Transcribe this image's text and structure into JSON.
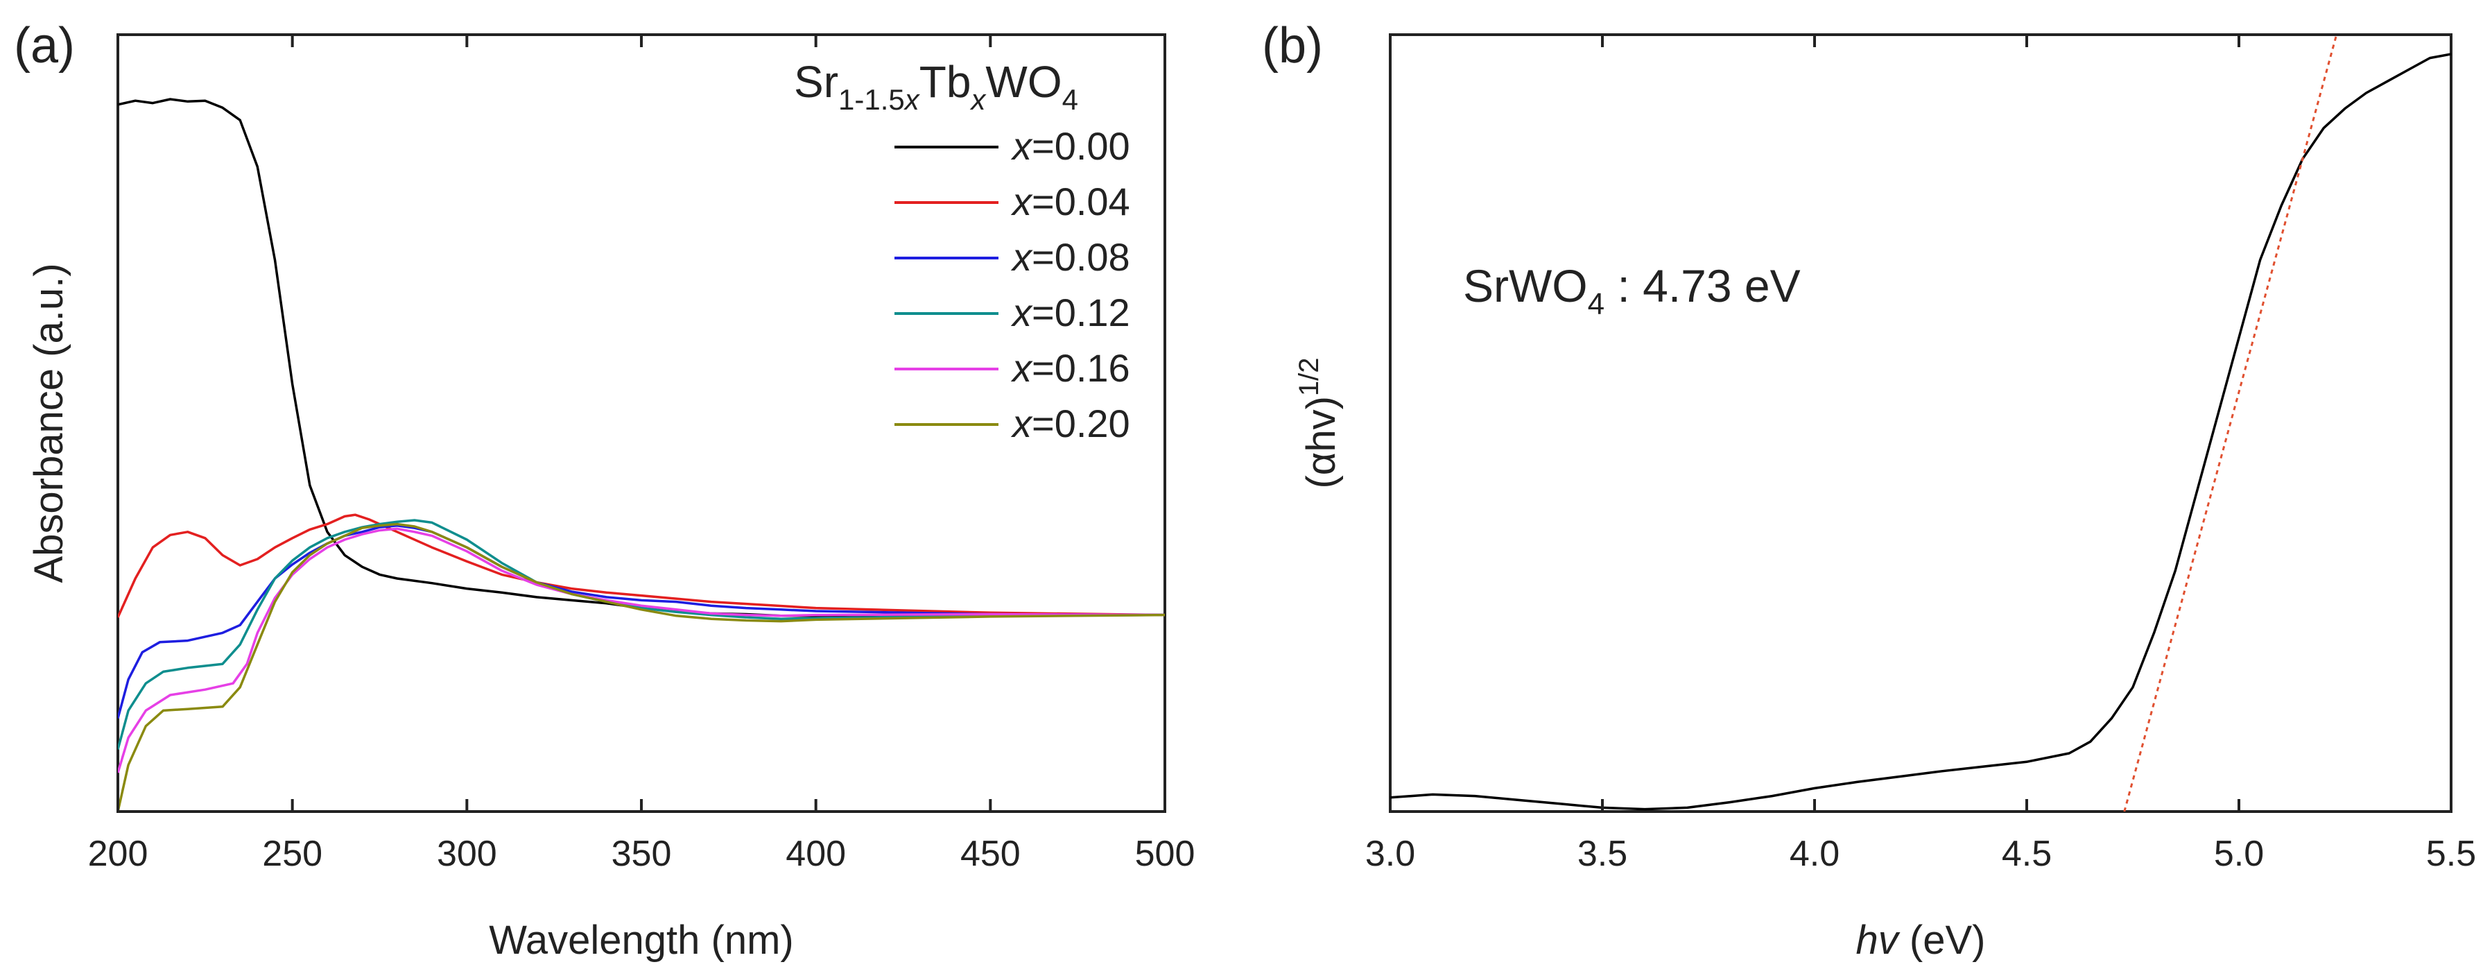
{
  "chart_data": [
    {
      "panel_label": "(a)",
      "type": "line",
      "xlabel": "Wavelength (nm)",
      "ylabel": "Absorbance (a.u.)",
      "xlim": [
        200,
        500
      ],
      "ylim": [
        0,
        1
      ],
      "x_ticks": [
        "200",
        "250",
        "300",
        "350",
        "400",
        "450",
        "500"
      ],
      "y_ticks": [],
      "grid": false,
      "legend_position": "top-right",
      "legend_title": {
        "base": "Sr",
        "sub1": "1-1.5",
        "sub1_var": "x",
        "mid": "Tb",
        "sub2": "x",
        "tail": "WO",
        "sub3": "4"
      },
      "series": [
        {
          "name": "x=0.00",
          "label_var": "x",
          "label_val": "=0.00",
          "color": "#000000",
          "points": [
            [
              200,
              0.91
            ],
            [
              205,
              0.915
            ],
            [
              210,
              0.912
            ],
            [
              215,
              0.917
            ],
            [
              220,
              0.914
            ],
            [
              225,
              0.915
            ],
            [
              230,
              0.906
            ],
            [
              235,
              0.89
            ],
            [
              240,
              0.83
            ],
            [
              245,
              0.71
            ],
            [
              250,
              0.55
            ],
            [
              255,
              0.42
            ],
            [
              260,
              0.36
            ],
            [
              265,
              0.33
            ],
            [
              270,
              0.315
            ],
            [
              275,
              0.305
            ],
            [
              280,
              0.3
            ],
            [
              290,
              0.294
            ],
            [
              300,
              0.287
            ],
            [
              310,
              0.282
            ],
            [
              320,
              0.276
            ],
            [
              330,
              0.272
            ],
            [
              340,
              0.268
            ],
            [
              350,
              0.262
            ],
            [
              360,
              0.258
            ],
            [
              370,
              0.255
            ],
            [
              380,
              0.254
            ],
            [
              390,
              0.252
            ],
            [
              400,
              0.252
            ],
            [
              420,
              0.253
            ],
            [
              450,
              0.253
            ],
            [
              500,
              0.253
            ]
          ]
        },
        {
          "name": "x=0.04",
          "label_var": "x",
          "label_val": "=0.04",
          "color": "#e32020",
          "points": [
            [
              200,
              0.25
            ],
            [
              205,
              0.3
            ],
            [
              210,
              0.34
            ],
            [
              215,
              0.356
            ],
            [
              220,
              0.36
            ],
            [
              225,
              0.352
            ],
            [
              230,
              0.33
            ],
            [
              235,
              0.317
            ],
            [
              240,
              0.325
            ],
            [
              245,
              0.34
            ],
            [
              250,
              0.352
            ],
            [
              255,
              0.363
            ],
            [
              260,
              0.37
            ],
            [
              265,
              0.38
            ],
            [
              268,
              0.382
            ],
            [
              272,
              0.376
            ],
            [
              280,
              0.36
            ],
            [
              290,
              0.34
            ],
            [
              300,
              0.322
            ],
            [
              310,
              0.305
            ],
            [
              320,
              0.295
            ],
            [
              330,
              0.287
            ],
            [
              340,
              0.282
            ],
            [
              350,
              0.278
            ],
            [
              370,
              0.27
            ],
            [
              400,
              0.262
            ],
            [
              450,
              0.256
            ],
            [
              500,
              0.253
            ]
          ]
        },
        {
          "name": "x=0.08",
          "label_var": "x",
          "label_val": "=0.08",
          "color": "#1e1ee0",
          "points": [
            [
              200,
              0.12
            ],
            [
              203,
              0.17
            ],
            [
              207,
              0.205
            ],
            [
              212,
              0.218
            ],
            [
              220,
              0.22
            ],
            [
              230,
              0.23
            ],
            [
              235,
              0.24
            ],
            [
              240,
              0.27
            ],
            [
              245,
              0.3
            ],
            [
              250,
              0.318
            ],
            [
              255,
              0.333
            ],
            [
              260,
              0.345
            ],
            [
              265,
              0.355
            ],
            [
              270,
              0.36
            ],
            [
              275,
              0.366
            ],
            [
              280,
              0.368
            ],
            [
              285,
              0.365
            ],
            [
              290,
              0.36
            ],
            [
              300,
              0.34
            ],
            [
              310,
              0.315
            ],
            [
              320,
              0.295
            ],
            [
              330,
              0.283
            ],
            [
              340,
              0.276
            ],
            [
              350,
              0.272
            ],
            [
              360,
              0.27
            ],
            [
              370,
              0.265
            ],
            [
              380,
              0.262
            ],
            [
              390,
              0.26
            ],
            [
              400,
              0.258
            ],
            [
              450,
              0.254
            ],
            [
              500,
              0.253
            ]
          ]
        },
        {
          "name": "x=0.12",
          "label_var": "x",
          "label_val": "=0.12",
          "color": "#0f8e8e",
          "points": [
            [
              200,
              0.08
            ],
            [
              203,
              0.13
            ],
            [
              208,
              0.165
            ],
            [
              213,
              0.18
            ],
            [
              220,
              0.185
            ],
            [
              230,
              0.19
            ],
            [
              235,
              0.215
            ],
            [
              240,
              0.26
            ],
            [
              245,
              0.3
            ],
            [
              250,
              0.323
            ],
            [
              255,
              0.34
            ],
            [
              260,
              0.352
            ],
            [
              265,
              0.36
            ],
            [
              270,
              0.366
            ],
            [
              275,
              0.37
            ],
            [
              280,
              0.373
            ],
            [
              285,
              0.375
            ],
            [
              290,
              0.372
            ],
            [
              300,
              0.35
            ],
            [
              310,
              0.32
            ],
            [
              320,
              0.295
            ],
            [
              330,
              0.28
            ],
            [
              340,
              0.27
            ],
            [
              350,
              0.262
            ],
            [
              360,
              0.257
            ],
            [
              370,
              0.253
            ],
            [
              380,
              0.25
            ],
            [
              390,
              0.248
            ],
            [
              400,
              0.249
            ],
            [
              450,
              0.252
            ],
            [
              500,
              0.253
            ]
          ]
        },
        {
          "name": "x=0.16",
          "label_var": "x",
          "label_val": "=0.16",
          "color": "#e640e6",
          "points": [
            [
              200,
              0.05
            ],
            [
              203,
              0.095
            ],
            [
              208,
              0.13
            ],
            [
              215,
              0.15
            ],
            [
              225,
              0.157
            ],
            [
              233,
              0.165
            ],
            [
              237,
              0.19
            ],
            [
              240,
              0.23
            ],
            [
              245,
              0.275
            ],
            [
              250,
              0.305
            ],
            [
              255,
              0.325
            ],
            [
              260,
              0.34
            ],
            [
              265,
              0.35
            ],
            [
              270,
              0.357
            ],
            [
              275,
              0.362
            ],
            [
              280,
              0.364
            ],
            [
              285,
              0.36
            ],
            [
              290,
              0.355
            ],
            [
              300,
              0.335
            ],
            [
              310,
              0.31
            ],
            [
              320,
              0.292
            ],
            [
              330,
              0.28
            ],
            [
              340,
              0.272
            ],
            [
              350,
              0.265
            ],
            [
              360,
              0.26
            ],
            [
              370,
              0.255
            ],
            [
              380,
              0.253
            ],
            [
              390,
              0.252
            ],
            [
              400,
              0.253
            ],
            [
              450,
              0.254
            ],
            [
              500,
              0.253
            ]
          ]
        },
        {
          "name": "x=0.20",
          "label_var": "x",
          "label_val": "=0.20",
          "color": "#8a8a10",
          "points": [
            [
              200,
              0.0
            ],
            [
              203,
              0.06
            ],
            [
              208,
              0.11
            ],
            [
              213,
              0.13
            ],
            [
              220,
              0.132
            ],
            [
              230,
              0.135
            ],
            [
              235,
              0.16
            ],
            [
              240,
              0.215
            ],
            [
              245,
              0.27
            ],
            [
              250,
              0.308
            ],
            [
              255,
              0.33
            ],
            [
              260,
              0.345
            ],
            [
              265,
              0.355
            ],
            [
              270,
              0.365
            ],
            [
              275,
              0.368
            ],
            [
              280,
              0.37
            ],
            [
              285,
              0.367
            ],
            [
              290,
              0.36
            ],
            [
              300,
              0.34
            ],
            [
              310,
              0.315
            ],
            [
              320,
              0.295
            ],
            [
              330,
              0.28
            ],
            [
              340,
              0.27
            ],
            [
              350,
              0.26
            ],
            [
              360,
              0.252
            ],
            [
              370,
              0.248
            ],
            [
              380,
              0.246
            ],
            [
              390,
              0.245
            ],
            [
              400,
              0.247
            ],
            [
              450,
              0.251
            ],
            [
              500,
              0.253
            ]
          ]
        }
      ]
    },
    {
      "panel_label": "(b)",
      "type": "line",
      "xlabel_var": "hv",
      "xlabel_unit": " (eV)",
      "ylabel_main": "(αhv)",
      "ylabel_sup": "1/2",
      "xlim": [
        3.0,
        5.5
      ],
      "ylim": [
        0,
        1
      ],
      "x_ticks": [
        "3.0",
        "3.5",
        "4.0",
        "4.5",
        "5.0",
        "5.5"
      ],
      "y_ticks": [],
      "grid": false,
      "annotation": {
        "main": "SrWO",
        "sub": "4",
        "tail": " : 4.73 eV"
      },
      "series": [
        {
          "name": "",
          "color": "#000000",
          "points": [
            [
              3.0,
              0.018
            ],
            [
              3.1,
              0.022
            ],
            [
              3.2,
              0.02
            ],
            [
              3.3,
              0.015
            ],
            [
              3.4,
              0.01
            ],
            [
              3.5,
              0.005
            ],
            [
              3.6,
              0.003
            ],
            [
              3.7,
              0.005
            ],
            [
              3.8,
              0.012
            ],
            [
              3.9,
              0.02
            ],
            [
              4.0,
              0.03
            ],
            [
              4.1,
              0.038
            ],
            [
              4.2,
              0.045
            ],
            [
              4.3,
              0.052
            ],
            [
              4.4,
              0.058
            ],
            [
              4.5,
              0.064
            ],
            [
              4.6,
              0.075
            ],
            [
              4.65,
              0.09
            ],
            [
              4.7,
              0.12
            ],
            [
              4.75,
              0.16
            ],
            [
              4.8,
              0.23
            ],
            [
              4.85,
              0.31
            ],
            [
              4.9,
              0.41
            ],
            [
              4.95,
              0.51
            ],
            [
              5.0,
              0.61
            ],
            [
              5.05,
              0.71
            ],
            [
              5.1,
              0.78
            ],
            [
              5.15,
              0.84
            ],
            [
              5.2,
              0.88
            ],
            [
              5.25,
              0.905
            ],
            [
              5.3,
              0.925
            ],
            [
              5.35,
              0.94
            ],
            [
              5.4,
              0.955
            ],
            [
              5.45,
              0.97
            ],
            [
              5.5,
              0.975
            ]
          ]
        }
      ],
      "fit_line": {
        "color": "#e05030",
        "x": [
          4.73,
          5.24
        ],
        "y": [
          0.0,
          1.02
        ]
      }
    }
  ]
}
